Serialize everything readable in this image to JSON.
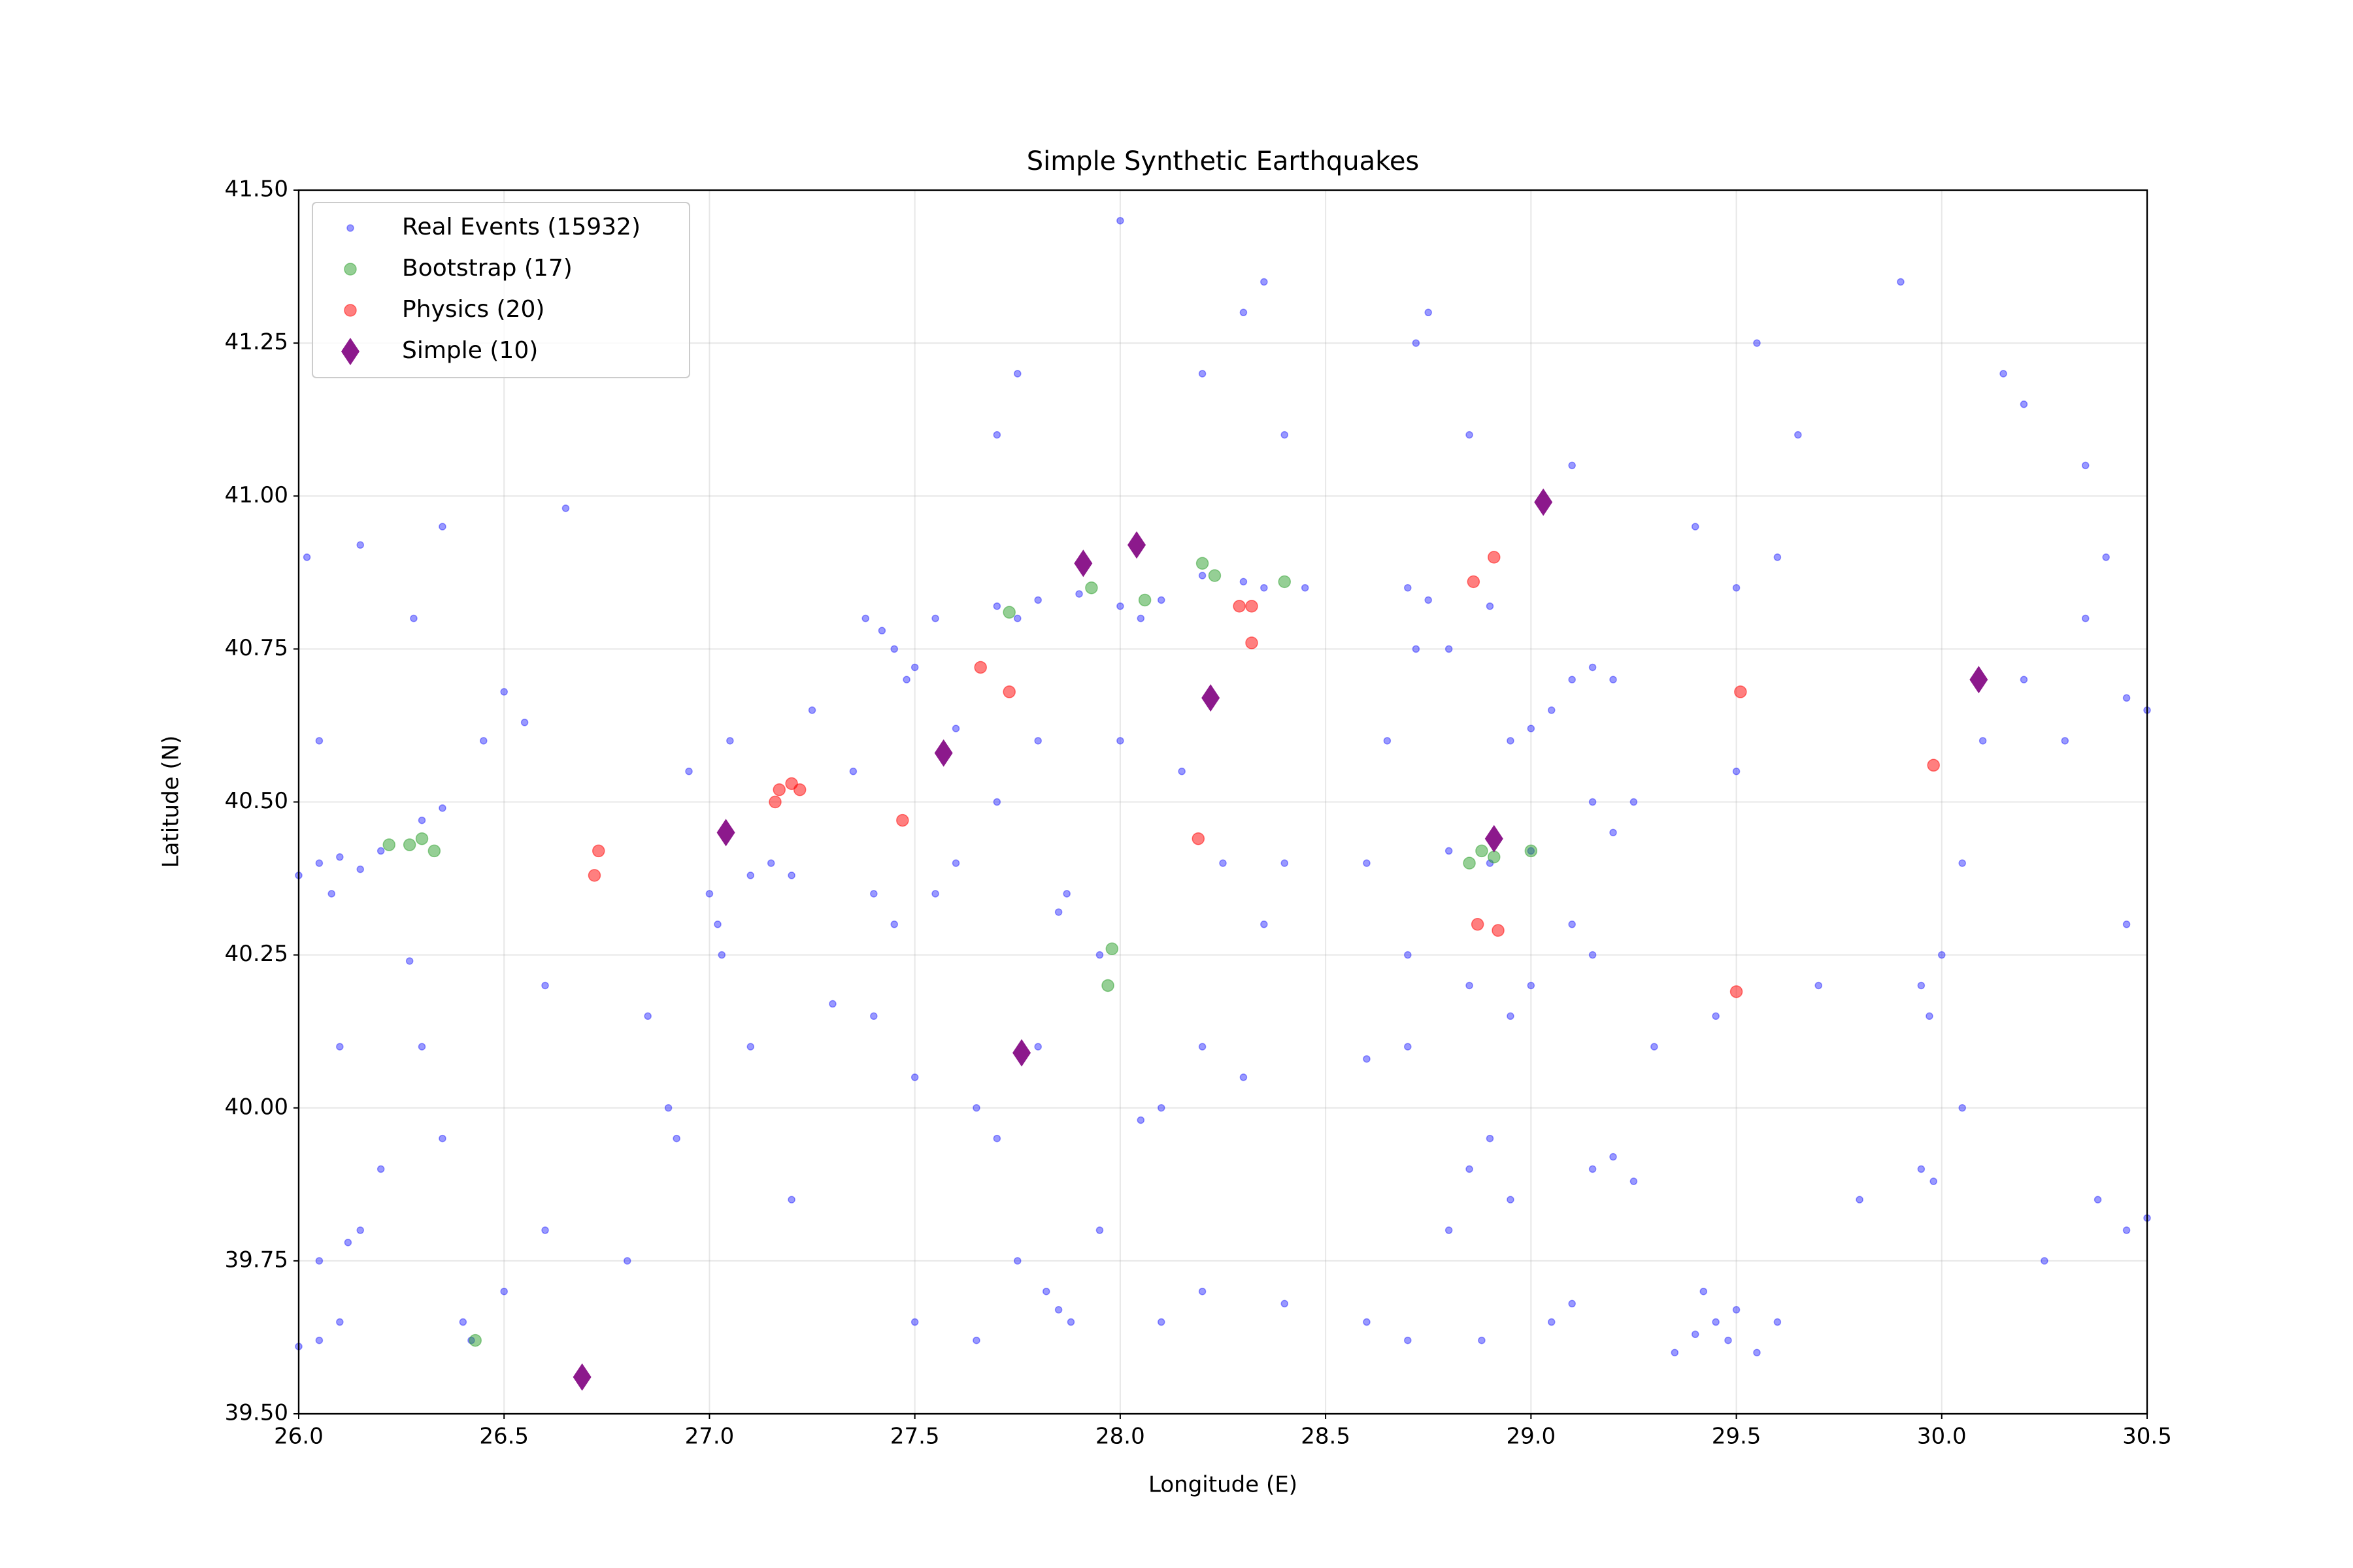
{
  "chart_data": {
    "type": "scatter",
    "title": "Simple Synthetic Earthquakes",
    "x_label": "Longitude (E)",
    "y_label": "Latitude (N)",
    "xlim": [
      26.0,
      30.5
    ],
    "ylim": [
      39.5,
      41.5
    ],
    "xticks": [
      {
        "value": 26.0,
        "label": "26.0"
      },
      {
        "value": 26.5,
        "label": "26.5"
      },
      {
        "value": 27.0,
        "label": "27.0"
      },
      {
        "value": 27.5,
        "label": "27.5"
      },
      {
        "value": 28.0,
        "label": "28.0"
      },
      {
        "value": 28.5,
        "label": "28.5"
      },
      {
        "value": 29.0,
        "label": "29.0"
      },
      {
        "value": 29.5,
        "label": "29.5"
      },
      {
        "value": 30.0,
        "label": "30.0"
      },
      {
        "value": 30.5,
        "label": "30.5"
      }
    ],
    "yticks": [
      {
        "value": 39.5,
        "label": "39.50"
      },
      {
        "value": 39.75,
        "label": "39.75"
      },
      {
        "value": 40.0,
        "label": "40.00"
      },
      {
        "value": 40.25,
        "label": "40.25"
      },
      {
        "value": 40.5,
        "label": "40.50"
      },
      {
        "value": 40.75,
        "label": "40.75"
      },
      {
        "value": 41.0,
        "label": "41.00"
      },
      {
        "value": 41.25,
        "label": "41.25"
      },
      {
        "value": 41.5,
        "label": "41.50"
      }
    ],
    "grid": true,
    "legend": "upper left",
    "series": [
      {
        "name": "Real Events (15932)",
        "color": "#0000ff",
        "marker": "circle",
        "x": [
          26.05,
          26.1,
          26.15,
          26.2,
          26.0,
          26.08,
          26.3,
          26.35,
          26.27,
          26.02,
          26.15,
          26.28,
          26.35,
          26.05,
          26.1,
          26.05,
          26.15,
          26.12,
          26.05,
          26.0,
          26.1,
          26.2,
          26.3,
          26.45,
          26.55,
          26.5,
          26.42,
          26.4,
          26.5,
          26.6,
          26.65,
          26.6,
          26.35,
          26.9,
          26.92,
          26.85,
          27.02,
          27.03,
          27.0,
          27.1,
          27.15,
          27.2,
          26.95,
          27.05,
          27.1,
          27.2,
          26.8,
          27.25,
          27.45,
          27.5,
          27.42,
          27.55,
          27.48,
          27.38,
          27.6,
          27.35,
          27.4,
          27.45,
          27.55,
          27.6,
          27.4,
          27.3,
          27.5,
          27.65,
          27.7,
          27.8,
          27.85,
          27.87,
          27.7,
          27.8,
          27.7,
          27.8,
          27.9,
          28.0,
          28.1,
          28.2,
          28.3,
          28.35,
          28.45,
          27.75,
          28.05,
          27.85,
          27.88,
          27.82,
          27.95,
          27.75,
          27.65,
          27.5,
          28.1,
          28.2,
          28.4,
          28.05,
          28.1,
          28.2,
          28.3,
          28.35,
          28.4,
          28.25,
          28.15,
          28.0,
          27.95,
          28.3,
          28.2,
          27.7,
          27.75,
          28.0,
          28.4,
          28.35,
          28.7,
          28.75,
          28.8,
          28.72,
          28.9,
          28.65,
          28.6,
          28.8,
          28.9,
          29.0,
          28.95,
          29.0,
          29.05,
          29.1,
          29.15,
          29.2,
          29.15,
          29.2,
          29.25,
          29.1,
          29.15,
          29.0,
          28.95,
          28.85,
          28.7,
          28.6,
          28.9,
          28.85,
          28.95,
          28.8,
          29.15,
          29.2,
          29.25,
          28.6,
          28.7,
          28.88,
          29.05,
          29.1,
          28.75,
          28.72,
          28.85,
          29.1,
          28.7,
          29.45,
          29.4,
          29.5,
          29.42,
          29.48,
          29.35,
          29.55,
          29.6,
          29.3,
          29.45,
          29.5,
          29.5,
          29.6,
          29.7,
          29.8,
          29.55,
          29.65,
          29.4,
          29.95,
          29.97,
          30.0,
          29.95,
          29.98,
          30.05,
          30.1,
          30.2,
          30.3,
          30.35,
          30.4,
          30.45,
          30.5,
          30.38,
          30.45,
          30.5,
          30.25,
          30.15,
          30.2,
          29.9,
          30.35,
          30.45,
          30.05
        ],
        "values": [
          40.4,
          40.41,
          40.39,
          40.42,
          40.38,
          40.35,
          40.47,
          40.49,
          40.24,
          40.9,
          40.92,
          40.8,
          40.95,
          40.6,
          40.1,
          39.75,
          39.8,
          39.78,
          39.62,
          39.61,
          39.65,
          39.9,
          40.1,
          40.6,
          40.63,
          40.68,
          39.62,
          39.65,
          39.7,
          39.8,
          40.98,
          40.2,
          39.95,
          40.0,
          39.95,
          40.15,
          40.3,
          40.25,
          40.35,
          40.38,
          40.4,
          40.38,
          40.55,
          40.6,
          40.1,
          39.85,
          39.75,
          40.65,
          40.75,
          40.72,
          40.78,
          40.8,
          40.7,
          40.8,
          40.62,
          40.55,
          40.35,
          40.3,
          40.35,
          40.4,
          40.15,
          40.17,
          40.05,
          40.0,
          39.95,
          40.1,
          40.32,
          40.35,
          40.5,
          40.6,
          40.82,
          40.83,
          40.84,
          40.82,
          40.83,
          40.87,
          40.86,
          40.85,
          40.85,
          40.8,
          40.8,
          39.67,
          39.65,
          39.7,
          39.8,
          39.75,
          39.62,
          39.65,
          39.65,
          39.7,
          39.68,
          39.98,
          40.0,
          40.1,
          40.05,
          40.3,
          40.4,
          40.4,
          40.55,
          40.6,
          40.25,
          41.3,
          41.2,
          41.1,
          41.2,
          41.45,
          41.1,
          41.35,
          40.85,
          40.83,
          40.75,
          40.75,
          40.82,
          40.6,
          40.4,
          40.42,
          40.4,
          40.42,
          40.6,
          40.62,
          40.65,
          40.7,
          40.72,
          40.7,
          40.5,
          40.45,
          40.5,
          40.3,
          40.25,
          40.2,
          40.15,
          40.2,
          40.1,
          40.08,
          39.95,
          39.9,
          39.85,
          39.8,
          39.9,
          39.92,
          39.88,
          39.65,
          39.62,
          39.62,
          39.65,
          39.68,
          41.3,
          41.25,
          41.1,
          41.05,
          40.25,
          39.65,
          39.63,
          39.67,
          39.7,
          39.62,
          39.6,
          39.6,
          39.65,
          40.1,
          40.15,
          40.55,
          40.85,
          40.9,
          40.2,
          39.85,
          41.25,
          41.1,
          40.95,
          40.2,
          40.15,
          40.25,
          39.9,
          39.88,
          40.4,
          40.6,
          40.7,
          40.6,
          40.8,
          40.9,
          40.67,
          40.65,
          39.85,
          39.8,
          39.82,
          39.75,
          41.2,
          41.15,
          41.35,
          41.05,
          40.3,
          40.0
        ]
      },
      {
        "name": "Bootstrap (17)",
        "color": "#2ca02c",
        "marker": "circle",
        "x": [
          26.22,
          26.27,
          26.33,
          26.43,
          27.73,
          27.97,
          27.98,
          28.2,
          28.4,
          28.85,
          28.91,
          29.0,
          28.23,
          27.93,
          26.3,
          28.88,
          28.06
        ],
        "values": [
          40.43,
          40.43,
          40.42,
          39.62,
          40.81,
          40.2,
          40.26,
          40.89,
          40.86,
          40.4,
          40.41,
          40.42,
          40.87,
          40.85,
          40.44,
          40.42,
          40.83
        ]
      },
      {
        "name": "Physics (20)",
        "color": "#ff0000",
        "marker": "circle",
        "x": [
          26.73,
          26.72,
          27.16,
          27.17,
          27.2,
          27.22,
          27.47,
          27.66,
          27.73,
          28.19,
          28.29,
          28.32,
          28.32,
          28.86,
          28.91,
          28.87,
          28.92,
          29.5,
          29.51,
          29.98
        ],
        "values": [
          40.42,
          40.38,
          40.5,
          40.52,
          40.53,
          40.52,
          40.47,
          40.72,
          40.68,
          40.44,
          40.82,
          40.82,
          40.76,
          40.86,
          40.9,
          40.3,
          40.29,
          40.19,
          40.68,
          40.56
        ]
      },
      {
        "name": "Simple (10)",
        "color": "#800080",
        "marker": "diamond",
        "x": [
          26.69,
          27.04,
          27.57,
          27.76,
          27.91,
          28.04,
          28.22,
          28.91,
          29.03,
          30.09
        ],
        "values": [
          39.56,
          40.45,
          40.58,
          40.09,
          40.89,
          40.92,
          40.67,
          40.44,
          40.99,
          40.7
        ]
      }
    ]
  }
}
